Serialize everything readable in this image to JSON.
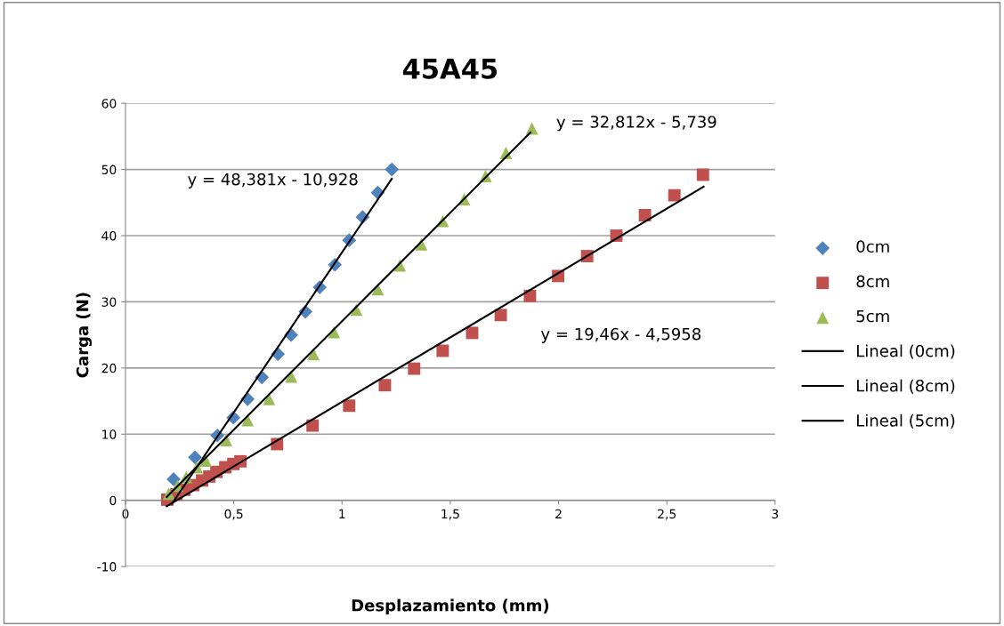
{
  "chart_data": {
    "type": "scatter",
    "title": "45A45",
    "xlabel": "Desplazamiento (mm)",
    "ylabel": "Carga (N)",
    "xlim": [
      0,
      3
    ],
    "xticks": [
      0,
      {
        "value": 0.5,
        "label": "0,5"
      },
      1,
      {
        "value": 1.5,
        "label": "1,5"
      },
      2,
      {
        "value": 2.5,
        "label": "2,5"
      },
      3
    ],
    "ylim": [
      -10,
      60
    ],
    "yticks": [
      -10,
      0,
      10,
      20,
      30,
      40,
      50,
      60
    ],
    "grid": "y",
    "legend": "right",
    "series": [
      {
        "name": "0cm",
        "marker": "diamond",
        "color": "#4f81bd",
        "x": [
          0.222,
          0.321,
          0.424,
          0.498,
          0.564,
          0.63,
          0.704,
          0.765,
          0.831,
          0.897,
          0.967,
          1.033,
          1.095,
          1.165,
          1.23
        ],
        "values": [
          3.2,
          6.5,
          9.8,
          12.5,
          15.3,
          18.6,
          22.1,
          25.0,
          28.5,
          32.2,
          35.6,
          39.3,
          42.8,
          46.5,
          50.0
        ]
      },
      {
        "name": "8cm",
        "marker": "square",
        "color": "#c0504d",
        "x": [
          0.193,
          0.235,
          0.272,
          0.313,
          0.354,
          0.387,
          0.42,
          0.461,
          0.498,
          0.531,
          0.7,
          0.864,
          1.033,
          1.198,
          1.333,
          1.465,
          1.601,
          1.733,
          1.868,
          1.998,
          2.132,
          2.267,
          2.399,
          2.535,
          2.667
        ],
        "values": [
          0.1,
          0.9,
          1.6,
          2.3,
          3.0,
          3.6,
          4.3,
          5.0,
          5.5,
          5.9,
          8.5,
          11.3,
          14.3,
          17.4,
          19.9,
          22.6,
          25.3,
          28.0,
          30.9,
          33.9,
          36.9,
          40.0,
          43.1,
          46.1,
          49.2
        ]
      },
      {
        "name": "5cm",
        "marker": "triangle",
        "color": "#9bbb59",
        "x": [
          0.2,
          0.24,
          0.28,
          0.33,
          0.37,
          0.465,
          0.564,
          0.663,
          0.765,
          0.868,
          0.963,
          1.066,
          1.165,
          1.267,
          1.366,
          1.465,
          1.564,
          1.663,
          1.757,
          1.877
        ],
        "values": [
          1.0,
          2.2,
          3.5,
          5.0,
          6.0,
          9.1,
          12.1,
          15.3,
          18.7,
          22.1,
          25.4,
          28.8,
          31.9,
          35.5,
          38.7,
          42.2,
          45.5,
          49.0,
          52.5,
          56.2
        ]
      },
      {
        "name": "Lineal (0cm)",
        "type": "line",
        "marker": "none",
        "line_style": "solid",
        "color": "#000000",
        "x": [
          0.215,
          1.23
        ],
        "values": [
          -0.5,
          48.6
        ]
      },
      {
        "name": "Lineal (8cm)",
        "type": "line",
        "marker": "none",
        "line_style": "solid",
        "color": "#000000",
        "x": [
          0.19,
          2.67
        ],
        "values": [
          -0.9,
          47.4
        ]
      },
      {
        "name": "Lineal (5cm)",
        "type": "line",
        "marker": "none",
        "line_style": "solid",
        "color": "#000000",
        "x": [
          0.19,
          1.87
        ],
        "values": [
          0.5,
          55.6
        ]
      }
    ],
    "annotations": [
      "y = 48,381x - 10,928",
      "y = 32,812x - 5,739",
      "y = 19,46x - 4,5958"
    ]
  }
}
